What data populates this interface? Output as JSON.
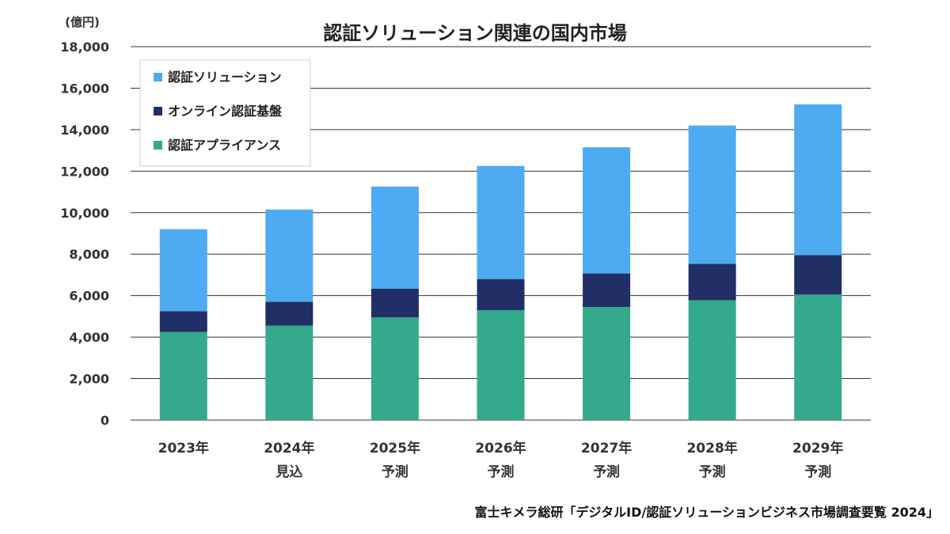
{
  "chart_data": {
    "type": "bar",
    "stacked": true,
    "title": "認証ソリューション関連の国内市場",
    "y_unit": "(億円)",
    "ylim": [
      0,
      18000
    ],
    "yticks": [
      "0",
      "2,000",
      "4,000",
      "6,000",
      "8,000",
      "10,000",
      "12,000",
      "14,000",
      "16,000",
      "18,000"
    ],
    "categories": [
      {
        "year": "2023年",
        "note": ""
      },
      {
        "year": "2024年",
        "note": "見込"
      },
      {
        "year": "2025年",
        "note": "予測"
      },
      {
        "year": "2026年",
        "note": "予測"
      },
      {
        "year": "2027年",
        "note": "予測"
      },
      {
        "year": "2028年",
        "note": "予測"
      },
      {
        "year": "2029年",
        "note": "予測"
      }
    ],
    "series": [
      {
        "name": "認証アプライアンス",
        "color": "#34a98b",
        "values": [
          4250,
          4550,
          4950,
          5300,
          5450,
          5780,
          6050
        ]
      },
      {
        "name": "オンライン認証基盤",
        "color": "#212f66",
        "values": [
          1000,
          1150,
          1380,
          1500,
          1620,
          1750,
          1900
        ]
      },
      {
        "name": "認証ソリューション",
        "color": "#4eabf2",
        "values": [
          3950,
          4450,
          4930,
          5450,
          6080,
          6670,
          7270
        ]
      }
    ],
    "legend": {
      "placement": "top-left",
      "order": [
        "認証ソリューション",
        "オンライン認証基盤",
        "認証アプライアンス"
      ]
    },
    "grid": true,
    "gridline_color": "#333333"
  },
  "source": "富士キメラ総研「デジタルID/認証ソリューションビジネス市場調査要覧 2024」"
}
